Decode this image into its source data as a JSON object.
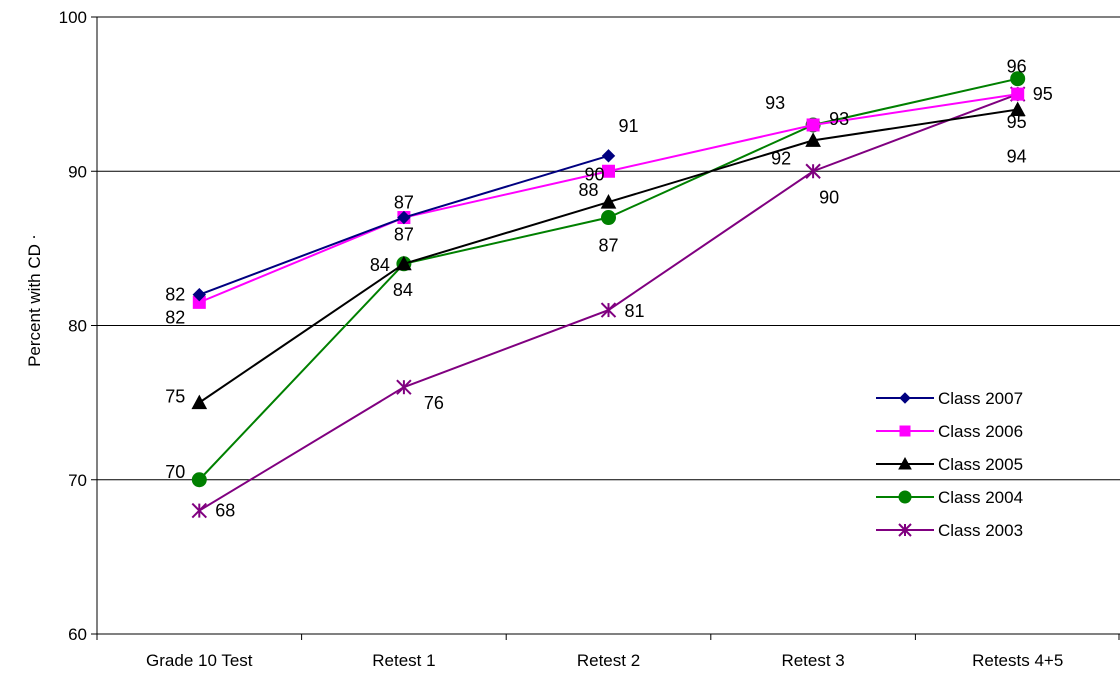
{
  "chart_data": {
    "type": "line",
    "title": "",
    "xlabel": "",
    "ylabel": "Percent with CD",
    "ylabel_suffix": ".",
    "categories": [
      "Grade 10 Test",
      "Retest 1",
      "Retest 2",
      "Retest 3",
      "Retests 4+5"
    ],
    "ylim": [
      60,
      100
    ],
    "yticks": [
      60,
      70,
      80,
      90,
      100
    ],
    "grid": "horizontal major gridlines",
    "legend_position": "right",
    "series": [
      {
        "name": "Class 2007",
        "color": "#000080",
        "marker": "diamond",
        "values": [
          82,
          87,
          91,
          null,
          null
        ],
        "labels": [
          "82",
          "87",
          "91",
          null,
          null
        ]
      },
      {
        "name": "Class 2006",
        "color": "#FF00FF",
        "marker": "square",
        "values": [
          81.5,
          87,
          90,
          93,
          95
        ],
        "labels": [
          "82",
          "87",
          "90",
          "93",
          "95"
        ]
      },
      {
        "name": "Class 2005",
        "color": "#000000",
        "marker": "triangle",
        "values": [
          75,
          84,
          88,
          92,
          94
        ],
        "labels": [
          "75",
          "84",
          "88",
          "92",
          "94"
        ]
      },
      {
        "name": "Class 2004",
        "color": "#008000",
        "marker": "circle",
        "values": [
          70,
          84,
          87,
          93,
          96
        ],
        "labels": [
          "70",
          "84",
          "87",
          "93",
          "96"
        ]
      },
      {
        "name": "Class 2003",
        "color": "#800080",
        "marker": "asterisk",
        "values": [
          68,
          76,
          81,
          90,
          95
        ],
        "labels": [
          "68",
          "76",
          "81",
          "90",
          "95"
        ]
      }
    ]
  }
}
